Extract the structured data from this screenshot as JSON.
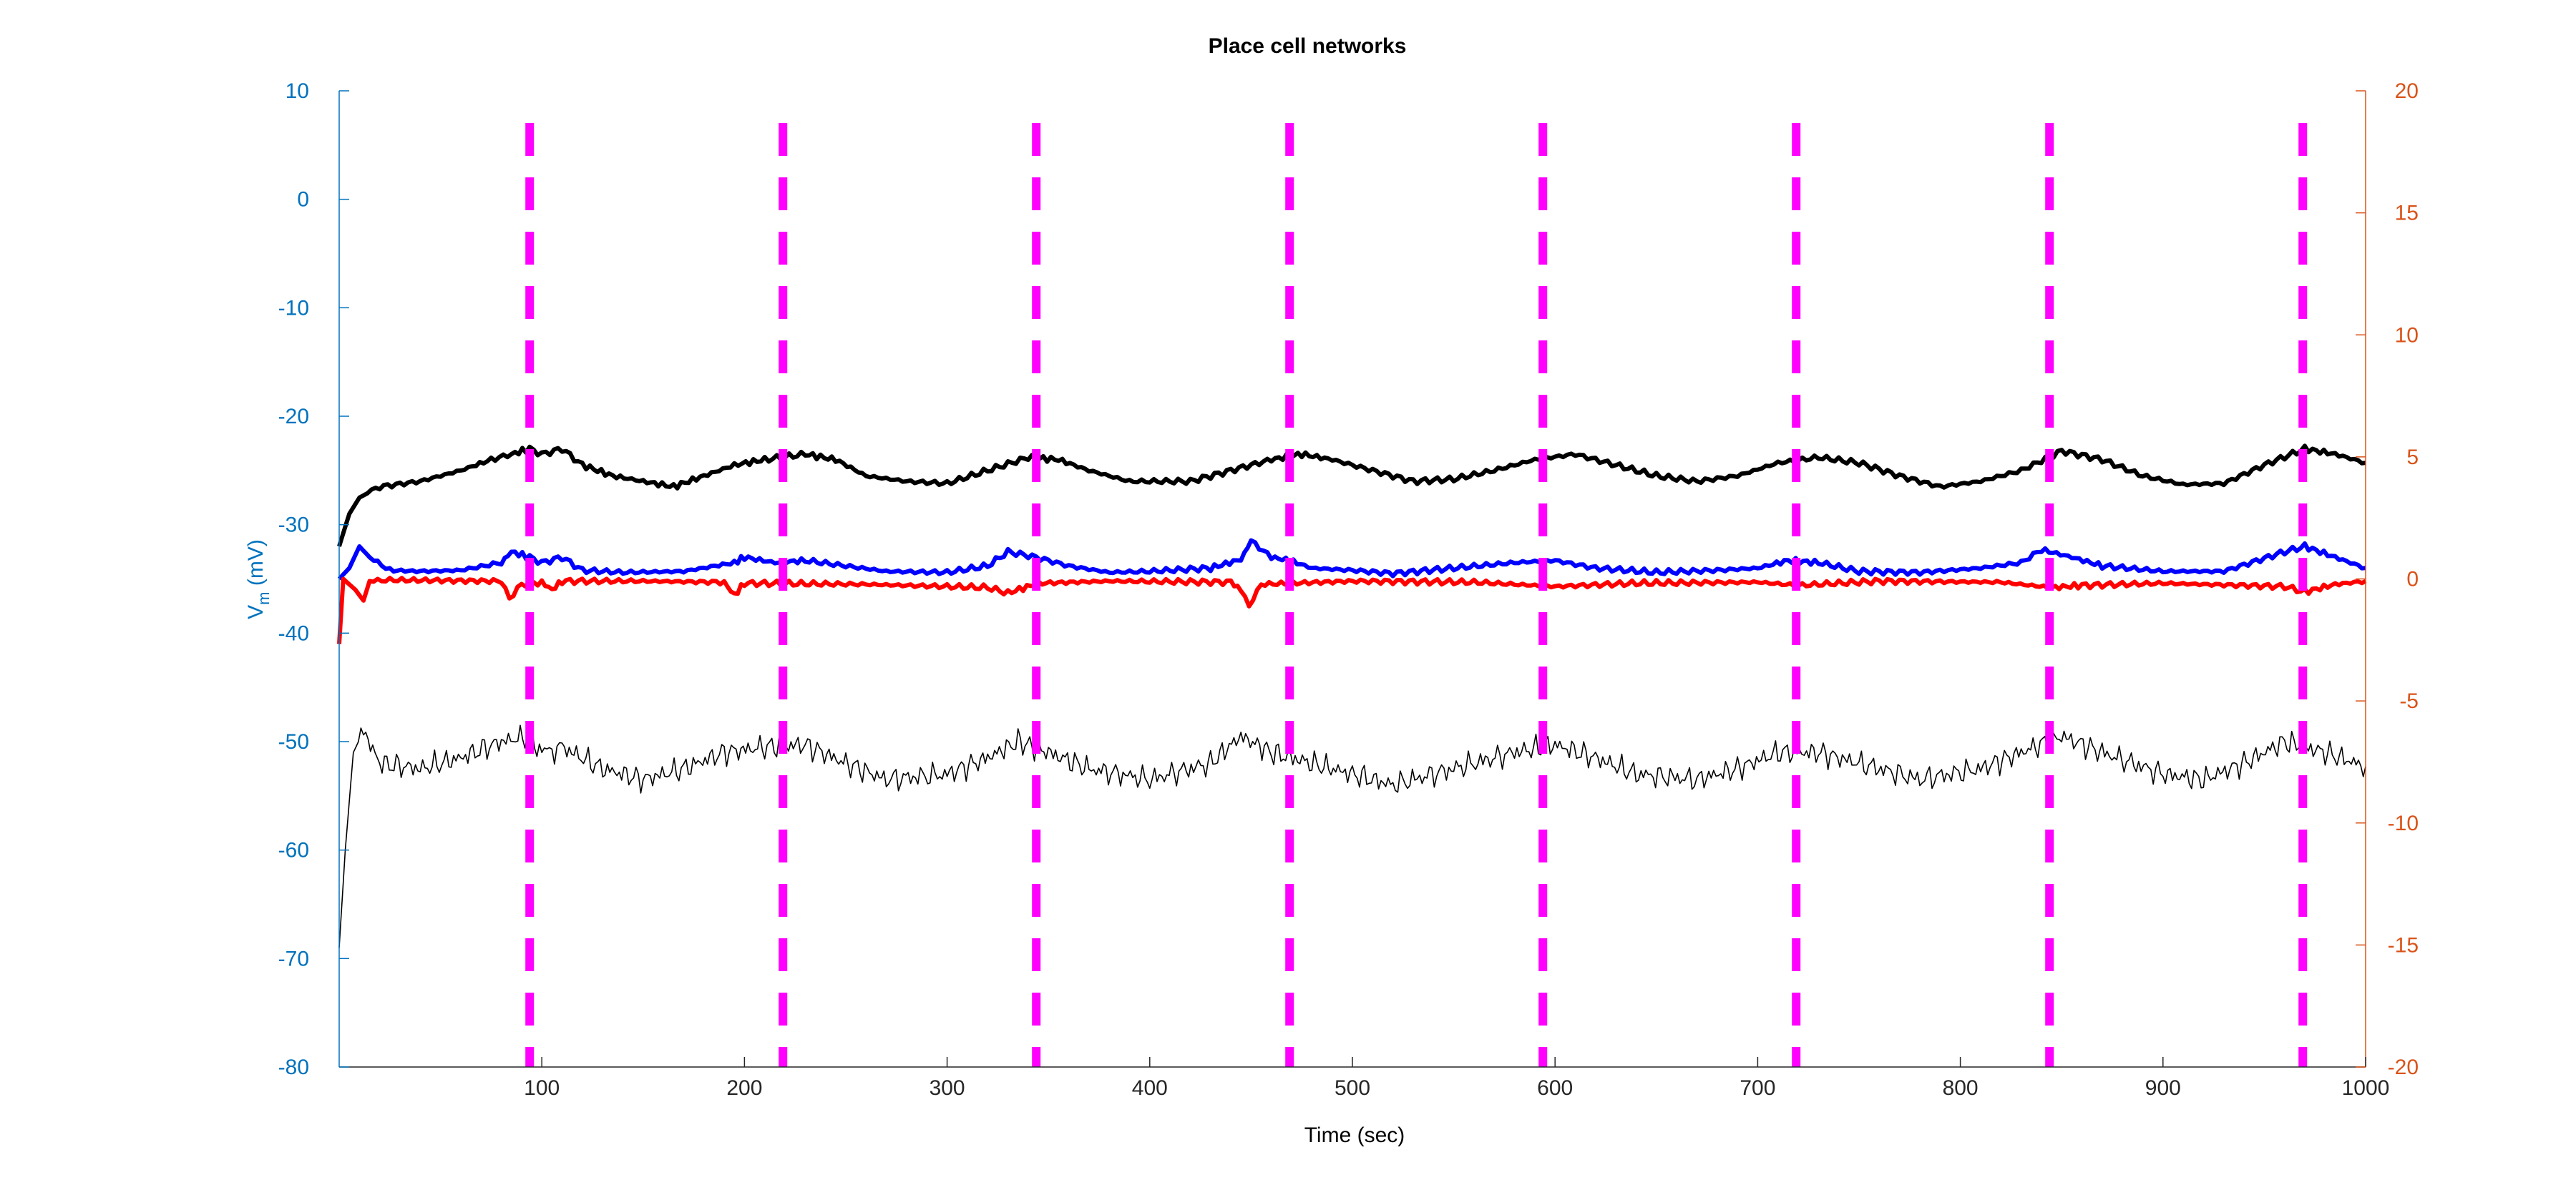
{
  "chart_data": {
    "type": "line",
    "title": "Place cell networks",
    "xlabel": "Time (sec)",
    "ylabel_left": {
      "main": "V",
      "sub": "m",
      "unit": " (mV)"
    },
    "ylabel_right": "",
    "xlim": [
      0,
      1000
    ],
    "ylim_left": [
      -80,
      10
    ],
    "ylim_right": [
      -20,
      20
    ],
    "xticks": [
      100,
      200,
      300,
      400,
      500,
      600,
      700,
      800,
      900,
      1000
    ],
    "yticks_left": [
      10,
      0,
      -10,
      -20,
      -30,
      -40,
      -50,
      -60,
      -70,
      -80
    ],
    "yticks_right": [
      20,
      15,
      10,
      5,
      0,
      -5,
      -10,
      -15,
      -20
    ],
    "grid": false,
    "legend": "none",
    "colors": {
      "left_axis": "#0072BD",
      "right_axis": "#D95319",
      "markers": "#FF00FF",
      "black_thick": "#000000",
      "blue": "#0000FF",
      "red": "#FF0000",
      "black_thin": "#000000"
    },
    "vertical_markers": {
      "style": "dashed",
      "x": [
        94,
        219,
        344,
        469,
        594,
        719,
        844,
        969
      ]
    },
    "series": [
      {
        "axis": "left",
        "color": "#000000",
        "width": "thick",
        "points": [
          [
            0,
            -32
          ],
          [
            5,
            -29
          ],
          [
            10,
            -27.5
          ],
          [
            20,
            -26.5
          ],
          [
            40,
            -26
          ],
          [
            60,
            -25
          ],
          [
            75,
            -24
          ],
          [
            85,
            -23.5
          ],
          [
            94,
            -23
          ],
          [
            100,
            -23.5
          ],
          [
            110,
            -23
          ],
          [
            120,
            -24.5
          ],
          [
            135,
            -25.5
          ],
          [
            150,
            -26
          ],
          [
            165,
            -26.5
          ],
          [
            180,
            -25.5
          ],
          [
            195,
            -24.5
          ],
          [
            210,
            -24
          ],
          [
            230,
            -23.5
          ],
          [
            245,
            -24
          ],
          [
            260,
            -25.5
          ],
          [
            280,
            -26
          ],
          [
            300,
            -26.2
          ],
          [
            320,
            -25
          ],
          [
            340,
            -23.8
          ],
          [
            355,
            -24
          ],
          [
            370,
            -25
          ],
          [
            390,
            -26
          ],
          [
            420,
            -26
          ],
          [
            440,
            -25
          ],
          [
            460,
            -24
          ],
          [
            475,
            -23.5
          ],
          [
            490,
            -24
          ],
          [
            510,
            -25
          ],
          [
            530,
            -26
          ],
          [
            550,
            -25.8
          ],
          [
            570,
            -25
          ],
          [
            590,
            -24
          ],
          [
            610,
            -23.5
          ],
          [
            630,
            -24.5
          ],
          [
            650,
            -25.5
          ],
          [
            670,
            -26
          ],
          [
            690,
            -25.5
          ],
          [
            710,
            -24.3
          ],
          [
            730,
            -23.8
          ],
          [
            750,
            -24.3
          ],
          [
            770,
            -25.5
          ],
          [
            790,
            -26.5
          ],
          [
            810,
            -26
          ],
          [
            830,
            -25
          ],
          [
            850,
            -23.2
          ],
          [
            870,
            -24
          ],
          [
            890,
            -25.5
          ],
          [
            910,
            -26.3
          ],
          [
            930,
            -26.2
          ],
          [
            950,
            -24.5
          ],
          [
            970,
            -23
          ],
          [
            985,
            -23.5
          ],
          [
            1000,
            -24.3
          ]
        ]
      },
      {
        "axis": "left",
        "color": "#0000FF",
        "width": "thick",
        "points": [
          [
            0,
            -35
          ],
          [
            5,
            -34
          ],
          [
            10,
            -32
          ],
          [
            15,
            -33
          ],
          [
            25,
            -34.2
          ],
          [
            40,
            -34.3
          ],
          [
            60,
            -34.2
          ],
          [
            80,
            -33.5
          ],
          [
            85,
            -32.5
          ],
          [
            94,
            -33
          ],
          [
            100,
            -33.5
          ],
          [
            110,
            -33
          ],
          [
            120,
            -34.2
          ],
          [
            140,
            -34.4
          ],
          [
            170,
            -34.3
          ],
          [
            195,
            -33.5
          ],
          [
            200,
            -33
          ],
          [
            215,
            -33.5
          ],
          [
            230,
            -33.3
          ],
          [
            250,
            -33.8
          ],
          [
            270,
            -34.3
          ],
          [
            300,
            -34.4
          ],
          [
            320,
            -33.8
          ],
          [
            330,
            -32.5
          ],
          [
            344,
            -33
          ],
          [
            360,
            -33.8
          ],
          [
            380,
            -34.4
          ],
          [
            400,
            -34.3
          ],
          [
            430,
            -34
          ],
          [
            445,
            -33.2
          ],
          [
            450,
            -31.5
          ],
          [
            460,
            -33
          ],
          [
            469,
            -33.3
          ],
          [
            480,
            -34
          ],
          [
            500,
            -34.2
          ],
          [
            520,
            -34.5
          ],
          [
            550,
            -34
          ],
          [
            580,
            -33.5
          ],
          [
            600,
            -33.3
          ],
          [
            620,
            -34
          ],
          [
            650,
            -34.4
          ],
          [
            680,
            -34.2
          ],
          [
            700,
            -34
          ],
          [
            715,
            -33.3
          ],
          [
            730,
            -33.5
          ],
          [
            750,
            -34.3
          ],
          [
            780,
            -34.4
          ],
          [
            810,
            -34
          ],
          [
            830,
            -33.5
          ],
          [
            840,
            -32.3
          ],
          [
            855,
            -33
          ],
          [
            870,
            -33.8
          ],
          [
            900,
            -34.3
          ],
          [
            930,
            -34.3
          ],
          [
            960,
            -32.5
          ],
          [
            970,
            -32
          ],
          [
            985,
            -33
          ],
          [
            1000,
            -34
          ]
        ]
      },
      {
        "axis": "left",
        "color": "#FF0000",
        "width": "thick",
        "points": [
          [
            0,
            -41
          ],
          [
            2,
            -35
          ],
          [
            8,
            -36
          ],
          [
            12,
            -37
          ],
          [
            15,
            -35.2
          ],
          [
            25,
            -35.1
          ],
          [
            80,
            -35.2
          ],
          [
            84,
            -36.8
          ],
          [
            90,
            -35.5
          ],
          [
            100,
            -35.3
          ],
          [
            105,
            -36
          ],
          [
            110,
            -35.2
          ],
          [
            150,
            -35.2
          ],
          [
            190,
            -35.3
          ],
          [
            195,
            -36.5
          ],
          [
            200,
            -35.4
          ],
          [
            260,
            -35.5
          ],
          [
            320,
            -35.8
          ],
          [
            330,
            -36.3
          ],
          [
            345,
            -35.4
          ],
          [
            380,
            -35.2
          ],
          [
            440,
            -35.3
          ],
          [
            445,
            -36
          ],
          [
            449,
            -37.5
          ],
          [
            455,
            -35.5
          ],
          [
            500,
            -35.2
          ],
          [
            560,
            -35.3
          ],
          [
            600,
            -35.7
          ],
          [
            640,
            -35.4
          ],
          [
            700,
            -35.3
          ],
          [
            720,
            -35.6
          ],
          [
            760,
            -35.2
          ],
          [
            820,
            -35.3
          ],
          [
            845,
            -35.8
          ],
          [
            860,
            -35.6
          ],
          [
            900,
            -35.4
          ],
          [
            960,
            -35.7
          ],
          [
            970,
            -36.2
          ],
          [
            985,
            -35.5
          ],
          [
            1000,
            -35.2
          ]
        ]
      },
      {
        "axis": "left",
        "color": "#000000",
        "width": "thin",
        "noisy": true,
        "points": [
          [
            0,
            -69
          ],
          [
            3,
            -60
          ],
          [
            7,
            -51
          ],
          [
            12,
            -49
          ],
          [
            20,
            -52
          ],
          [
            40,
            -52.5
          ],
          [
            60,
            -51.5
          ],
          [
            80,
            -50
          ],
          [
            94,
            -49.5
          ],
          [
            100,
            -51
          ],
          [
            110,
            -50.5
          ],
          [
            130,
            -52.5
          ],
          [
            150,
            -53.5
          ],
          [
            170,
            -52.5
          ],
          [
            190,
            -51
          ],
          [
            210,
            -50.5
          ],
          [
            230,
            -50.3
          ],
          [
            250,
            -52
          ],
          [
            270,
            -53.5
          ],
          [
            300,
            -53
          ],
          [
            320,
            -51.5
          ],
          [
            335,
            -50
          ],
          [
            350,
            -51
          ],
          [
            370,
            -52.5
          ],
          [
            400,
            -53.5
          ],
          [
            430,
            -52
          ],
          [
            445,
            -49.5
          ],
          [
            460,
            -51
          ],
          [
            480,
            -52
          ],
          [
            500,
            -53
          ],
          [
            520,
            -54
          ],
          [
            550,
            -52.5
          ],
          [
            580,
            -51
          ],
          [
            600,
            -50.3
          ],
          [
            620,
            -51.5
          ],
          [
            640,
            -53
          ],
          [
            670,
            -53.5
          ],
          [
            690,
            -52.5
          ],
          [
            710,
            -51
          ],
          [
            730,
            -51
          ],
          [
            750,
            -52
          ],
          [
            780,
            -53.5
          ],
          [
            810,
            -52.5
          ],
          [
            830,
            -51
          ],
          [
            850,
            -49.5
          ],
          [
            870,
            -51
          ],
          [
            900,
            -53
          ],
          [
            920,
            -53.5
          ],
          [
            940,
            -52
          ],
          [
            960,
            -50
          ],
          [
            980,
            -51
          ],
          [
            1000,
            -52.3
          ]
        ]
      }
    ]
  }
}
